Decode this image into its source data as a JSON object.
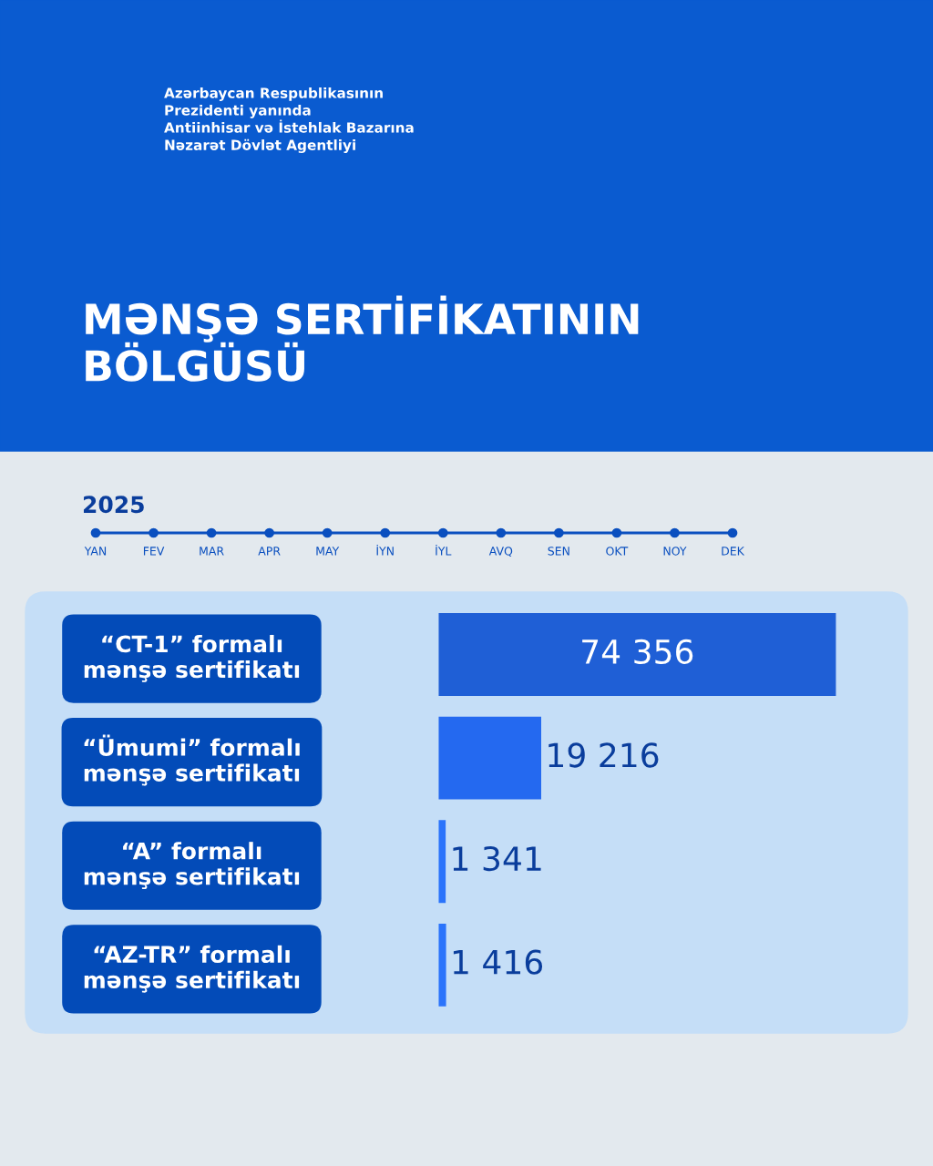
{
  "chart_data": {
    "type": "bar",
    "orientation": "horizontal",
    "title": "MƏNŞƏ SERTİFİKATININ\nBÖLGÜSÜ",
    "subtitle": "2025",
    "categories": [
      "“CT-1” formalı\nmənşə sertifikatı",
      "“Ümumi” formalı\nmənşə sertifikatı",
      "“A” formalı\nmənşə sertifikatı",
      "“AZ-TR” formalı\nmənşə sertifikatı"
    ],
    "values": [
      74356,
      19216,
      1341,
      1416
    ],
    "colors": [
      "#1f5fd6",
      "#2469f0",
      "#2a73fb",
      "#2a73fb"
    ],
    "value_labels": [
      "74 356",
      "19 216",
      "1 341",
      "1 416"
    ],
    "annotations": [
      "Azərbaycan Respublikasının\nPrezidenti yanında\nAntiinhisar və İstehlak Bazarına\nNəzarət Dövlət Agentliyi",
      "YAN",
      "FEV",
      "MAR",
      "APR",
      "MAY",
      "İYN",
      "İYL",
      "AVQ",
      "SEN",
      "OKT",
      "NOY",
      "DEK"
    ],
    "grid": false,
    "legend": false
  }
}
